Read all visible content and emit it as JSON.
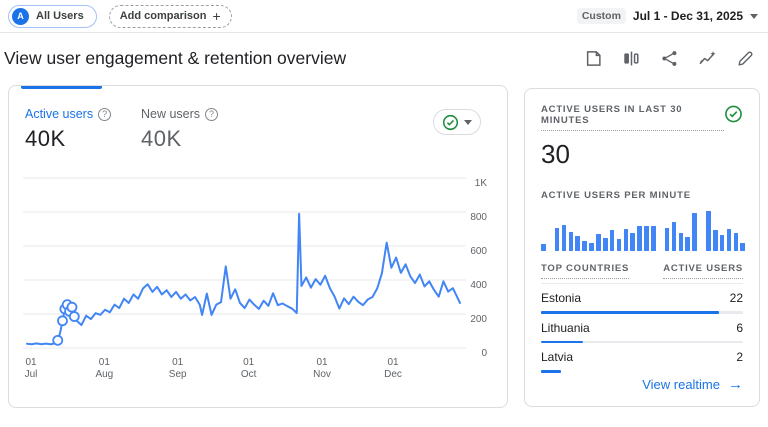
{
  "topbar": {
    "all_users": {
      "avatar_letter": "A",
      "label": "All Users"
    },
    "add_comparison": {
      "label": "Add comparison",
      "plus": "+"
    },
    "date_range": {
      "badge": "Custom",
      "label": "Jul 1 - Dec 31, 2025"
    }
  },
  "header": {
    "title": "View user engagement & retention overview",
    "icons": [
      "note-icon",
      "ab-compare-icon",
      "share-icon",
      "insights-icon",
      "edit-icon"
    ]
  },
  "left_card": {
    "metrics": [
      {
        "label": "Active users",
        "value": "40K"
      },
      {
        "label": "New users",
        "value": "40K"
      }
    ],
    "chart_data": {
      "type": "line",
      "title": "Active users over time (Jul 1 - Dec 31, 2025)",
      "ylim": [
        0,
        1000
      ],
      "xlim_days": [
        0,
        183
      ],
      "grid": true,
      "y_ticks": [
        {
          "v": 0,
          "label": "0"
        },
        {
          "v": 200,
          "label": "200"
        },
        {
          "v": 400,
          "label": "400"
        },
        {
          "v": 600,
          "label": "600"
        },
        {
          "v": 800,
          "label": "800"
        },
        {
          "v": 1000,
          "label": "1K"
        }
      ],
      "x_ticks": [
        {
          "day": 0,
          "label": "01",
          "sub": "Jul"
        },
        {
          "day": 31,
          "label": "01",
          "sub": "Aug"
        },
        {
          "day": 62,
          "label": "01",
          "sub": "Sep"
        },
        {
          "day": 92,
          "label": "01",
          "sub": "Oct"
        },
        {
          "day": 123,
          "label": "01",
          "sub": "Nov"
        },
        {
          "day": 153,
          "label": "01",
          "sub": "Dec"
        }
      ],
      "series": [
        {
          "name": "Active users",
          "color": "#4285f4",
          "points": [
            [
              0,
              25
            ],
            [
              2,
              22
            ],
            [
              4,
              27
            ],
            [
              6,
              22
            ],
            [
              8,
              26
            ],
            [
              10,
              22
            ],
            [
              12,
              28
            ],
            [
              13,
              45
            ],
            [
              14,
              90
            ],
            [
              15,
              160
            ],
            [
              16,
              230
            ],
            [
              17,
              255
            ],
            [
              18,
              215
            ],
            [
              19,
              240
            ],
            [
              20,
              185
            ],
            [
              21,
              160
            ],
            [
              23,
              135
            ],
            [
              25,
              190
            ],
            [
              27,
              170
            ],
            [
              29,
              205
            ],
            [
              31,
              195
            ],
            [
              33,
              225
            ],
            [
              35,
              210
            ],
            [
              37,
              255
            ],
            [
              39,
              235
            ],
            [
              41,
              290
            ],
            [
              43,
              265
            ],
            [
              45,
              315
            ],
            [
              47,
              290
            ],
            [
              49,
              350
            ],
            [
              51,
              375
            ],
            [
              53,
              330
            ],
            [
              55,
              360
            ],
            [
              57,
              315
            ],
            [
              59,
              340
            ],
            [
              61,
              300
            ],
            [
              63,
              330
            ],
            [
              65,
              290
            ],
            [
              67,
              315
            ],
            [
              69,
              280
            ],
            [
              71,
              300
            ],
            [
              73,
              255
            ],
            [
              74,
              195
            ],
            [
              76,
              320
            ],
            [
              78,
              195
            ],
            [
              80,
              255
            ],
            [
              82,
              270
            ],
            [
              84,
              480
            ],
            [
              86,
              290
            ],
            [
              88,
              345
            ],
            [
              90,
              265
            ],
            [
              92,
              235
            ],
            [
              94,
              285
            ],
            [
              96,
              255
            ],
            [
              98,
              230
            ],
            [
              100,
              278
            ],
            [
              102,
              248
            ],
            [
              104,
              322
            ],
            [
              106,
              252
            ],
            [
              108,
              262
            ],
            [
              110,
              246
            ],
            [
              112,
              232
            ],
            [
              114,
              206
            ],
            [
              115,
              790
            ],
            [
              116,
              365
            ],
            [
              118,
              415
            ],
            [
              120,
              355
            ],
            [
              122,
              405
            ],
            [
              124,
              372
            ],
            [
              126,
              425
            ],
            [
              128,
              352
            ],
            [
              130,
              302
            ],
            [
              132,
              232
            ],
            [
              134,
              292
            ],
            [
              136,
              258
            ],
            [
              138,
              302
            ],
            [
              140,
              272
            ],
            [
              142,
              252
            ],
            [
              144,
              285
            ],
            [
              146,
              300
            ],
            [
              148,
              350
            ],
            [
              150,
              440
            ],
            [
              151,
              530
            ],
            [
              152,
              620
            ],
            [
              154,
              472
            ],
            [
              156,
              532
            ],
            [
              158,
              442
            ],
            [
              160,
              492
            ],
            [
              162,
              422
            ],
            [
              164,
              382
            ],
            [
              166,
              432
            ],
            [
              168,
              362
            ],
            [
              170,
              392
            ],
            [
              172,
              342
            ],
            [
              174,
              302
            ],
            [
              176,
              392
            ],
            [
              178,
              332
            ],
            [
              180,
              352
            ],
            [
              183,
              265
            ]
          ]
        }
      ],
      "markers": [
        [
          13,
          45
        ],
        [
          15,
          160
        ],
        [
          16,
          230
        ],
        [
          17,
          255
        ],
        [
          18,
          215
        ],
        [
          19,
          240
        ],
        [
          20,
          185
        ]
      ]
    }
  },
  "right_card": {
    "last30_label": "ACTIVE USERS IN LAST 30 MINUTES",
    "last30_value": "30",
    "per_minute_label": "ACTIVE USERS PER MINUTE",
    "chart_data": {
      "type": "bar",
      "title": "Active users per minute (last 30 minutes)",
      "values_relative_pct": [
        18,
        0,
        58,
        65,
        48,
        38,
        26,
        20,
        42,
        32,
        52,
        30,
        56,
        46,
        62,
        62,
        62,
        0,
        58,
        72,
        46,
        36,
        95,
        0,
        100,
        52,
        40,
        56,
        46,
        20
      ]
    },
    "table": {
      "headers": [
        "TOP COUNTRIES",
        "ACTIVE USERS"
      ],
      "rows": [
        {
          "country": "Estonia",
          "users": "22",
          "bar_pct": 88
        },
        {
          "country": "Lithuania",
          "users": "6",
          "bar_pct": 21
        },
        {
          "country": "Latvia",
          "users": "2",
          "bar_pct": 10
        }
      ]
    },
    "view_realtime": "View realtime"
  },
  "colors": {
    "accent_blue": "#1a73e8",
    "chart_blue": "#4285f4",
    "success_green": "#1e8e3e",
    "text_dark": "#202124",
    "text_gray": "#5f6368",
    "border": "#dadce0",
    "gridline": "#e9eaee"
  }
}
